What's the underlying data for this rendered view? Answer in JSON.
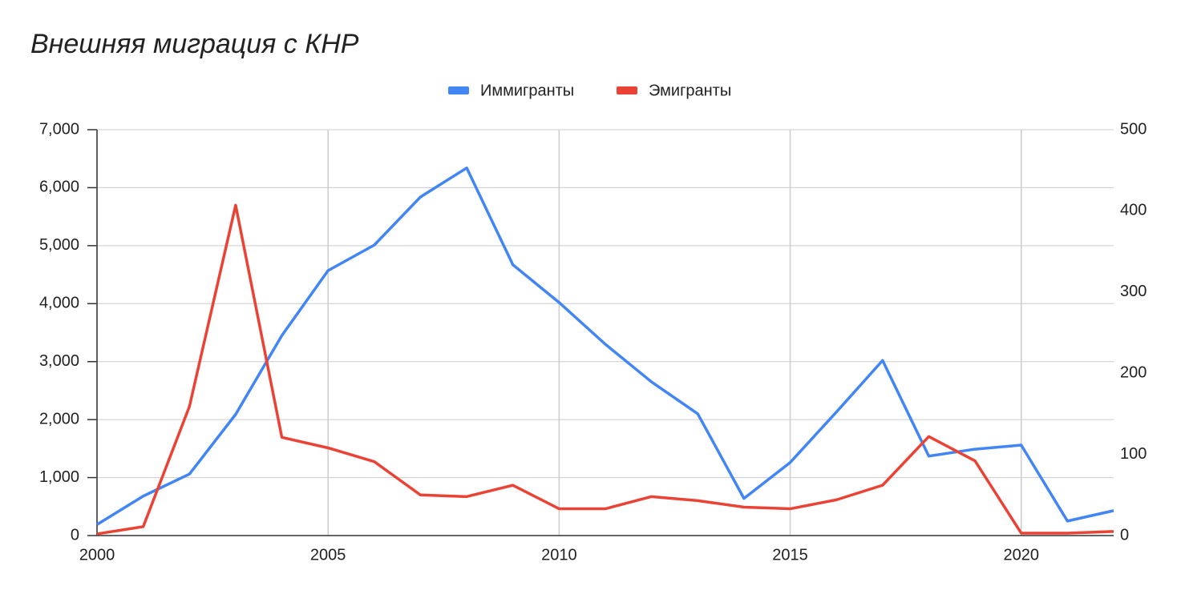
{
  "chart_data": {
    "type": "line",
    "title": "Внешняя миграция с КНР",
    "x": [
      2000,
      2001,
      2002,
      2003,
      2004,
      2005,
      2006,
      2007,
      2008,
      2009,
      2010,
      2011,
      2012,
      2013,
      2014,
      2015,
      2016,
      2017,
      2018,
      2019,
      2020,
      2021,
      2022
    ],
    "series": [
      {
        "name": "Иммигранты",
        "color": "#4285f4",
        "values": [
          190,
          680,
          1060,
          2090,
          3450,
          4570,
          5010,
          5840,
          6340,
          4670,
          4020,
          3300,
          2650,
          2100,
          640,
          1260,
          2130,
          3020,
          1370,
          1490,
          1560,
          250,
          430
        ]
      },
      {
        "name": "Эмигранты",
        "color": "#ea4335",
        "axis": "y2",
        "values": [
          2,
          11,
          159,
          407,
          121,
          108,
          91,
          50,
          48,
          62,
          33,
          33,
          48,
          43,
          35,
          33,
          44,
          62,
          122,
          92,
          3,
          3,
          5
        ]
      }
    ],
    "xlim": [
      2000,
      2022
    ],
    "xticks": [
      2000,
      2005,
      2010,
      2015,
      2020
    ],
    "ylim": [
      0,
      7000
    ],
    "yticks": [
      0,
      {
        "value": 1000,
        "label": "1,000"
      },
      {
        "value": 2000,
        "label": "2,000"
      },
      {
        "value": 3000,
        "label": "3,000"
      },
      {
        "value": 4000,
        "label": "4,000"
      },
      {
        "value": 5000,
        "label": "5,000"
      },
      {
        "value": 6000,
        "label": "6,000"
      },
      {
        "value": 7000,
        "label": "7,000"
      }
    ],
    "y2lim": [
      0,
      500
    ],
    "y2ticks": [
      0,
      100,
      200,
      300,
      400,
      500
    ],
    "grid": true,
    "legend": "top"
  }
}
